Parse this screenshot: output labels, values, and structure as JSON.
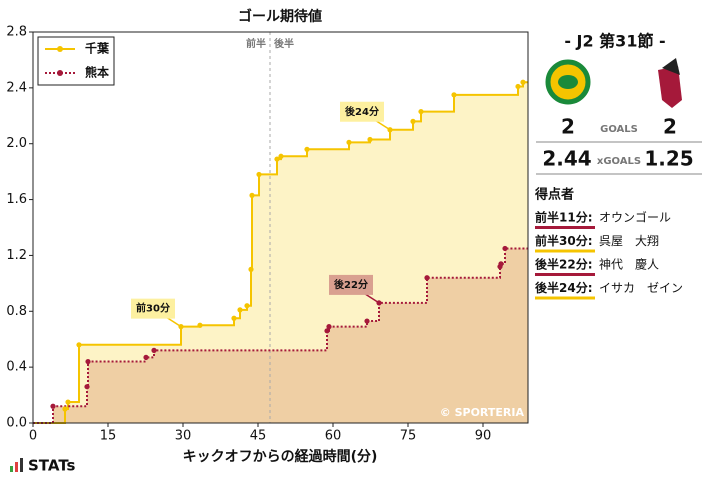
{
  "chart_data": {
    "type": "step",
    "title": "ゴール期待値",
    "x_label": "キックオフからの経過時間(分)",
    "xlim": [
      0,
      99
    ],
    "xticks": [
      0,
      15,
      30,
      45,
      60,
      75,
      90
    ],
    "ylim": [
      0,
      2.8
    ],
    "yticks": [
      {
        "value": 0,
        "label": "0.0"
      },
      0.4,
      0.8,
      1.2,
      1.6,
      {
        "value": 2,
        "label": "2.0"
      },
      2.4,
      2.8
    ],
    "legend": "upper left",
    "halftime": {
      "x": 47.4,
      "labels": [
        "前半",
        "後半"
      ]
    },
    "series": [
      {
        "name": "千葉",
        "color": "#f5c400",
        "fill": "#fdf3c6",
        "dash": false,
        "x": [
          6.4,
          7.0,
          9.2,
          29.6,
          33.4,
          40.2,
          41.4,
          42.8,
          43.6,
          43.8,
          45.2,
          48.8,
          49.6,
          54.8,
          63.2,
          67.4,
          71.4,
          76.0,
          77.6,
          84.2,
          97.0,
          98.0
        ],
        "values": [
          0.1,
          0.15,
          0.56,
          0.69,
          0.7,
          0.75,
          0.81,
          0.84,
          1.1,
          1.63,
          1.78,
          1.89,
          1.91,
          1.96,
          2.01,
          2.03,
          2.1,
          2.16,
          2.23,
          2.35,
          2.41,
          2.44
        ]
      },
      {
        "name": "熊本",
        "color": "#a5193a",
        "fill": "#efcfa4",
        "dash": true,
        "x": [
          4.0,
          10.8,
          11.0,
          22.6,
          24.2,
          58.8,
          59.2,
          66.8,
          69.2,
          78.8,
          93.4,
          93.6,
          94.4
        ],
        "values": [
          0.12,
          0.26,
          0.44,
          0.47,
          0.52,
          0.66,
          0.69,
          0.73,
          0.86,
          1.04,
          1.12,
          1.14,
          1.25
        ]
      }
    ],
    "annotations": [
      {
        "text": "後24分",
        "series": 0,
        "point": 16
      },
      {
        "text": "後22分",
        "series": 1,
        "point": 8
      },
      {
        "text": "前30分",
        "series": 0,
        "point": 3
      }
    ],
    "credit": "© SPORTERIA"
  },
  "match": {
    "round": "-  J2 第31節  -",
    "goals_label": "GOALS",
    "xg_label": "xGOALS",
    "home_goals": "2",
    "away_goals": "2",
    "home_xg": "2.44",
    "away_xg": "1.25"
  },
  "scorers": {
    "title": "得点者",
    "items": [
      {
        "time": "前半11分:",
        "name": "オウンゴール",
        "color": "#a5193a"
      },
      {
        "time": "前半30分:",
        "name": "呉屋　大翔",
        "color": "#f5c400"
      },
      {
        "time": "後半22分:",
        "name": "神代　慶人",
        "color": "#a5193a"
      },
      {
        "time": "後半24分:",
        "name": "イサカ　ゼイン",
        "color": "#f5c400"
      }
    ]
  },
  "brand": "STATs"
}
